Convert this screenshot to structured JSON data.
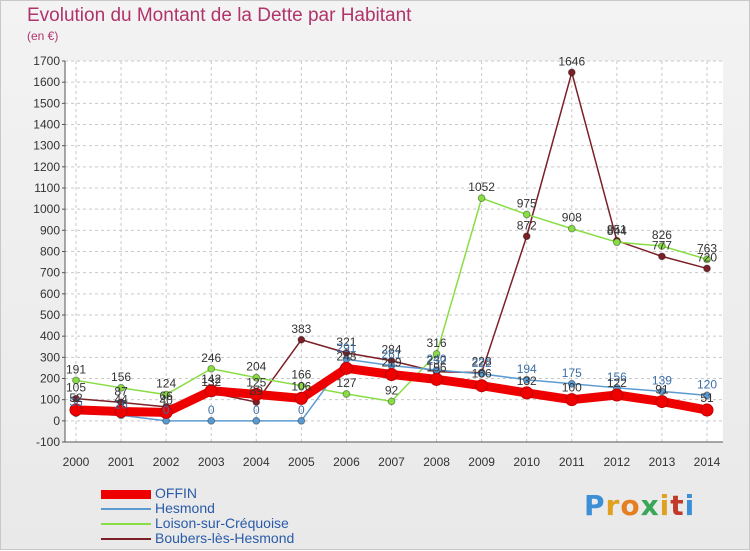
{
  "title": "Evolution du Montant de la Dette par Habitant",
  "subtitle": "(en €)",
  "logo": "Proxiti",
  "chart_data": {
    "type": "line",
    "x": [
      "2000",
      "2001",
      "2002",
      "2003",
      "2004",
      "2005",
      "2006",
      "2007",
      "2008",
      "2009",
      "2010",
      "2011",
      "2012",
      "2013",
      "2014"
    ],
    "ylim": [
      -100,
      1700
    ],
    "yticks": [
      -100,
      0,
      100,
      200,
      300,
      400,
      500,
      600,
      700,
      800,
      900,
      1000,
      1100,
      1200,
      1300,
      1400,
      1500,
      1600,
      1700
    ],
    "grid": true,
    "legend_position": "bottom-left",
    "series": [
      {
        "name": "OFFIN",
        "color": "#ee0000",
        "values": [
          52,
          44,
          40,
          142,
          125,
          106,
          248,
          219,
          196,
          166,
          132,
          100,
          122,
          91,
          51
        ]
      },
      {
        "name": "Hesmond",
        "color": "#5c9bd1",
        "values": [
          36,
          26,
          0,
          0,
          0,
          0,
          291,
          261,
          240,
          222,
          194,
          175,
          156,
          139,
          120
        ]
      },
      {
        "name": "Loison-sur-Créquoise",
        "color": "#88dd44",
        "values": [
          191,
          156,
          124,
          246,
          204,
          166,
          127,
          92,
          316,
          1052,
          975,
          908,
          844,
          826,
          763
        ]
      },
      {
        "name": "Boubers-lès-Hesmond",
        "color": "#7b2027",
        "values": [
          105,
          87,
          66,
          132,
          89,
          383,
          321,
          284,
          232,
          228,
          872,
          1646,
          851,
          777,
          720
        ]
      }
    ]
  }
}
